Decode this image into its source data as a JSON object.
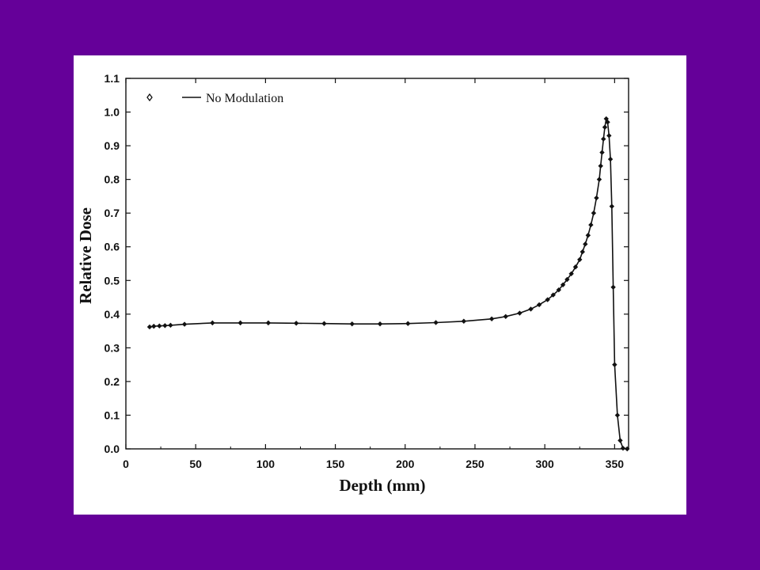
{
  "chart_data": {
    "type": "line",
    "xlabel": "Depth (mm)",
    "ylabel": "Relative Dose",
    "xlim": [
      0,
      360
    ],
    "ylim": [
      0,
      1.1
    ],
    "xticks": [
      0,
      50,
      100,
      150,
      200,
      250,
      300,
      350
    ],
    "xtick_labels": [
      "0",
      "50",
      "100",
      "150",
      "200",
      "250",
      "300",
      "350"
    ],
    "yticks": [
      0,
      0.1,
      0.2,
      0.3,
      0.4,
      0.5,
      0.6,
      0.7,
      0.8,
      0.9,
      1.0,
      1.1
    ],
    "ytick_labels": [
      "0.0",
      "0.1",
      "0.2",
      "0.3",
      "0.4",
      "0.5",
      "0.6",
      "0.7",
      "0.8",
      "0.9",
      "1.0",
      "1.1"
    ],
    "grid": false,
    "legend_position": "top-left",
    "series": [
      {
        "name": "No Modulation",
        "color": "#111111",
        "marker": "diamond",
        "points": [
          [
            17,
            0.362
          ],
          [
            20,
            0.364
          ],
          [
            24,
            0.365
          ],
          [
            28,
            0.366
          ],
          [
            32,
            0.367
          ],
          [
            42,
            0.37
          ],
          [
            62,
            0.374
          ],
          [
            82,
            0.374
          ],
          [
            102,
            0.374
          ],
          [
            122,
            0.373
          ],
          [
            142,
            0.372
          ],
          [
            162,
            0.371
          ],
          [
            182,
            0.371
          ],
          [
            202,
            0.372
          ],
          [
            222,
            0.375
          ],
          [
            242,
            0.379
          ],
          [
            262,
            0.386
          ],
          [
            272,
            0.393
          ],
          [
            282,
            0.403
          ],
          [
            290,
            0.415
          ],
          [
            296,
            0.428
          ],
          [
            302,
            0.443
          ],
          [
            306,
            0.457
          ],
          [
            310,
            0.472
          ],
          [
            313,
            0.487
          ],
          [
            316,
            0.503
          ],
          [
            319,
            0.52
          ],
          [
            322,
            0.54
          ],
          [
            325,
            0.562
          ],
          [
            327,
            0.585
          ],
          [
            329,
            0.608
          ],
          [
            331,
            0.634
          ],
          [
            333,
            0.665
          ],
          [
            335,
            0.7
          ],
          [
            337,
            0.745
          ],
          [
            339,
            0.8
          ],
          [
            340,
            0.84
          ],
          [
            341,
            0.88
          ],
          [
            342,
            0.92
          ],
          [
            343,
            0.955
          ],
          [
            344,
            0.98
          ],
          [
            345,
            0.97
          ],
          [
            346,
            0.93
          ],
          [
            347,
            0.86
          ],
          [
            348,
            0.72
          ],
          [
            349,
            0.48
          ],
          [
            350,
            0.25
          ],
          [
            352,
            0.1
          ],
          [
            354,
            0.025
          ],
          [
            356,
            0.002
          ],
          [
            359,
            0.0
          ]
        ]
      }
    ]
  }
}
